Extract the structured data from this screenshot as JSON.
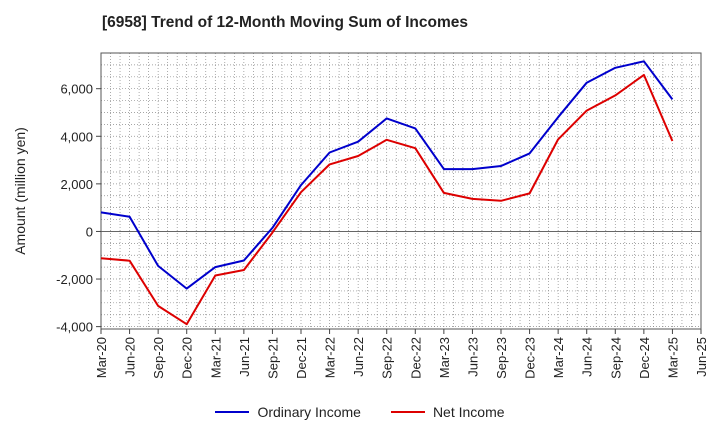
{
  "chart_data": {
    "type": "line",
    "title": "[6958]  Trend of 12-Month Moving Sum of Incomes",
    "ylabel": "Amount (million yen)",
    "xlabel": "",
    "categories": [
      "Mar-20",
      "Jun-20",
      "Sep-20",
      "Dec-20",
      "Mar-21",
      "Jun-21",
      "Sep-21",
      "Dec-21",
      "Mar-22",
      "Jun-22",
      "Sep-22",
      "Dec-22",
      "Mar-23",
      "Jun-23",
      "Sep-23",
      "Dec-23",
      "Mar-24",
      "Jun-24",
      "Sep-24",
      "Dec-24",
      "Mar-25",
      "Jun-25"
    ],
    "ylim": [
      -4100,
      7500
    ],
    "yticks": [
      -4000,
      -2000,
      0,
      2000,
      4000,
      6000
    ],
    "ytick_labels": [
      "-4,000",
      "-2,000",
      "0",
      "2,000",
      "4,000",
      "6,000"
    ],
    "grid": true,
    "legend_position": "bottom",
    "series": [
      {
        "name": "Ordinary Income",
        "color": "#0000cc",
        "values": [
          800,
          620,
          -1450,
          -2400,
          -1500,
          -1220,
          150,
          1950,
          3320,
          3770,
          4750,
          4330,
          2620,
          2620,
          2750,
          3280,
          4800,
          6250,
          6880,
          7150,
          5550,
          null
        ]
      },
      {
        "name": "Net Income",
        "color": "#dd0000",
        "values": [
          -1130,
          -1230,
          -3130,
          -3900,
          -1850,
          -1620,
          -50,
          1650,
          2820,
          3170,
          3850,
          3500,
          1620,
          1370,
          1290,
          1600,
          3870,
          5080,
          5720,
          6580,
          3800,
          null
        ]
      }
    ]
  }
}
